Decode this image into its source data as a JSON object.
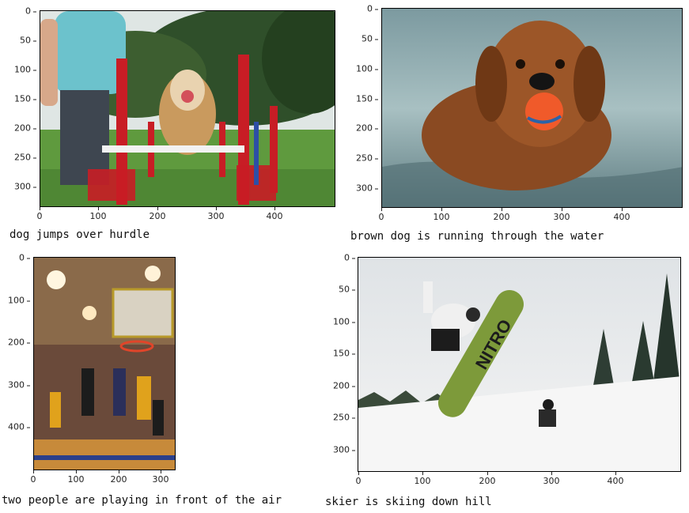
{
  "panels": [
    {
      "caption": "dog jumps over hurdle",
      "yticks": [
        "0",
        "50",
        "100",
        "150",
        "200",
        "250",
        "300"
      ],
      "xticks": [
        "0",
        "100",
        "200",
        "300",
        "400"
      ]
    },
    {
      "caption": "brown dog is running through the water",
      "yticks": [
        "0",
        "50",
        "100",
        "150",
        "200",
        "250",
        "300"
      ],
      "xticks": [
        "0",
        "100",
        "200",
        "300",
        "400"
      ]
    },
    {
      "caption": "two people are playing in front of the air",
      "yticks": [
        "0",
        "100",
        "200",
        "300",
        "400"
      ],
      "xticks": [
        "0",
        "100",
        "200",
        "300"
      ]
    },
    {
      "caption": "skier is skiing down hill",
      "yticks": [
        "0",
        "50",
        "100",
        "150",
        "200",
        "250",
        "300"
      ],
      "xticks": [
        "0",
        "100",
        "200",
        "300",
        "400"
      ]
    }
  ],
  "image_text": {
    "snowboard_brand": "NITRO"
  }
}
